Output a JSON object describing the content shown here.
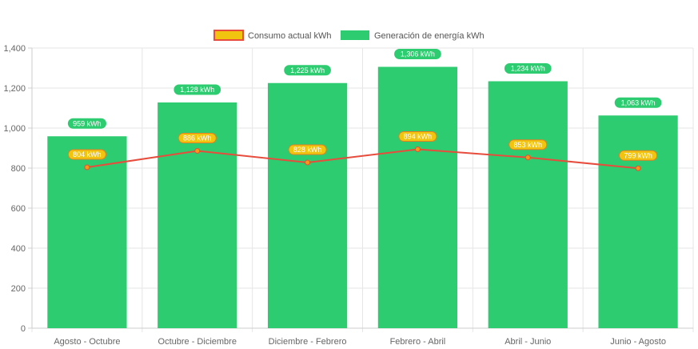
{
  "chart_data": {
    "type": "bar",
    "title": "",
    "xlabel": "",
    "ylabel": "",
    "ylim": [
      0,
      1400
    ],
    "yticks": [
      0,
      200,
      400,
      600,
      800,
      1000,
      1200,
      1400
    ],
    "ytick_labels": [
      "0",
      "200",
      "400",
      "600",
      "800",
      "1,000",
      "1,200",
      "1,400"
    ],
    "categories": [
      "Agosto - Octubre",
      "Octubre - Diciembre",
      "Diciembre - Febrero",
      "Febrero - Abril",
      "Abril - Junio",
      "Junio - Agosto"
    ],
    "grid": true,
    "legend_position": "top-center",
    "series": [
      {
        "name": "Consumo actual kWh",
        "kind": "line",
        "color": "#e74c3c",
        "label_bg": "#f1c40f",
        "values": [
          804,
          886,
          828,
          894,
          853,
          799
        ],
        "labels": [
          "804 kWh",
          "886 kWh",
          "828 kWh",
          "894 kWh",
          "853 kWh",
          "799 kWh"
        ]
      },
      {
        "name": "Generación de energía kWh",
        "kind": "bar",
        "color": "#2ecc71",
        "label_bg": "#2ecc71",
        "values": [
          959,
          1128,
          1225,
          1306,
          1234,
          1063
        ],
        "labels": [
          "959 kWh",
          "1,128 kWh",
          "1,225 kWh",
          "1,306 kWh",
          "1,234 kWh",
          "1,063 kWh"
        ]
      }
    ]
  }
}
